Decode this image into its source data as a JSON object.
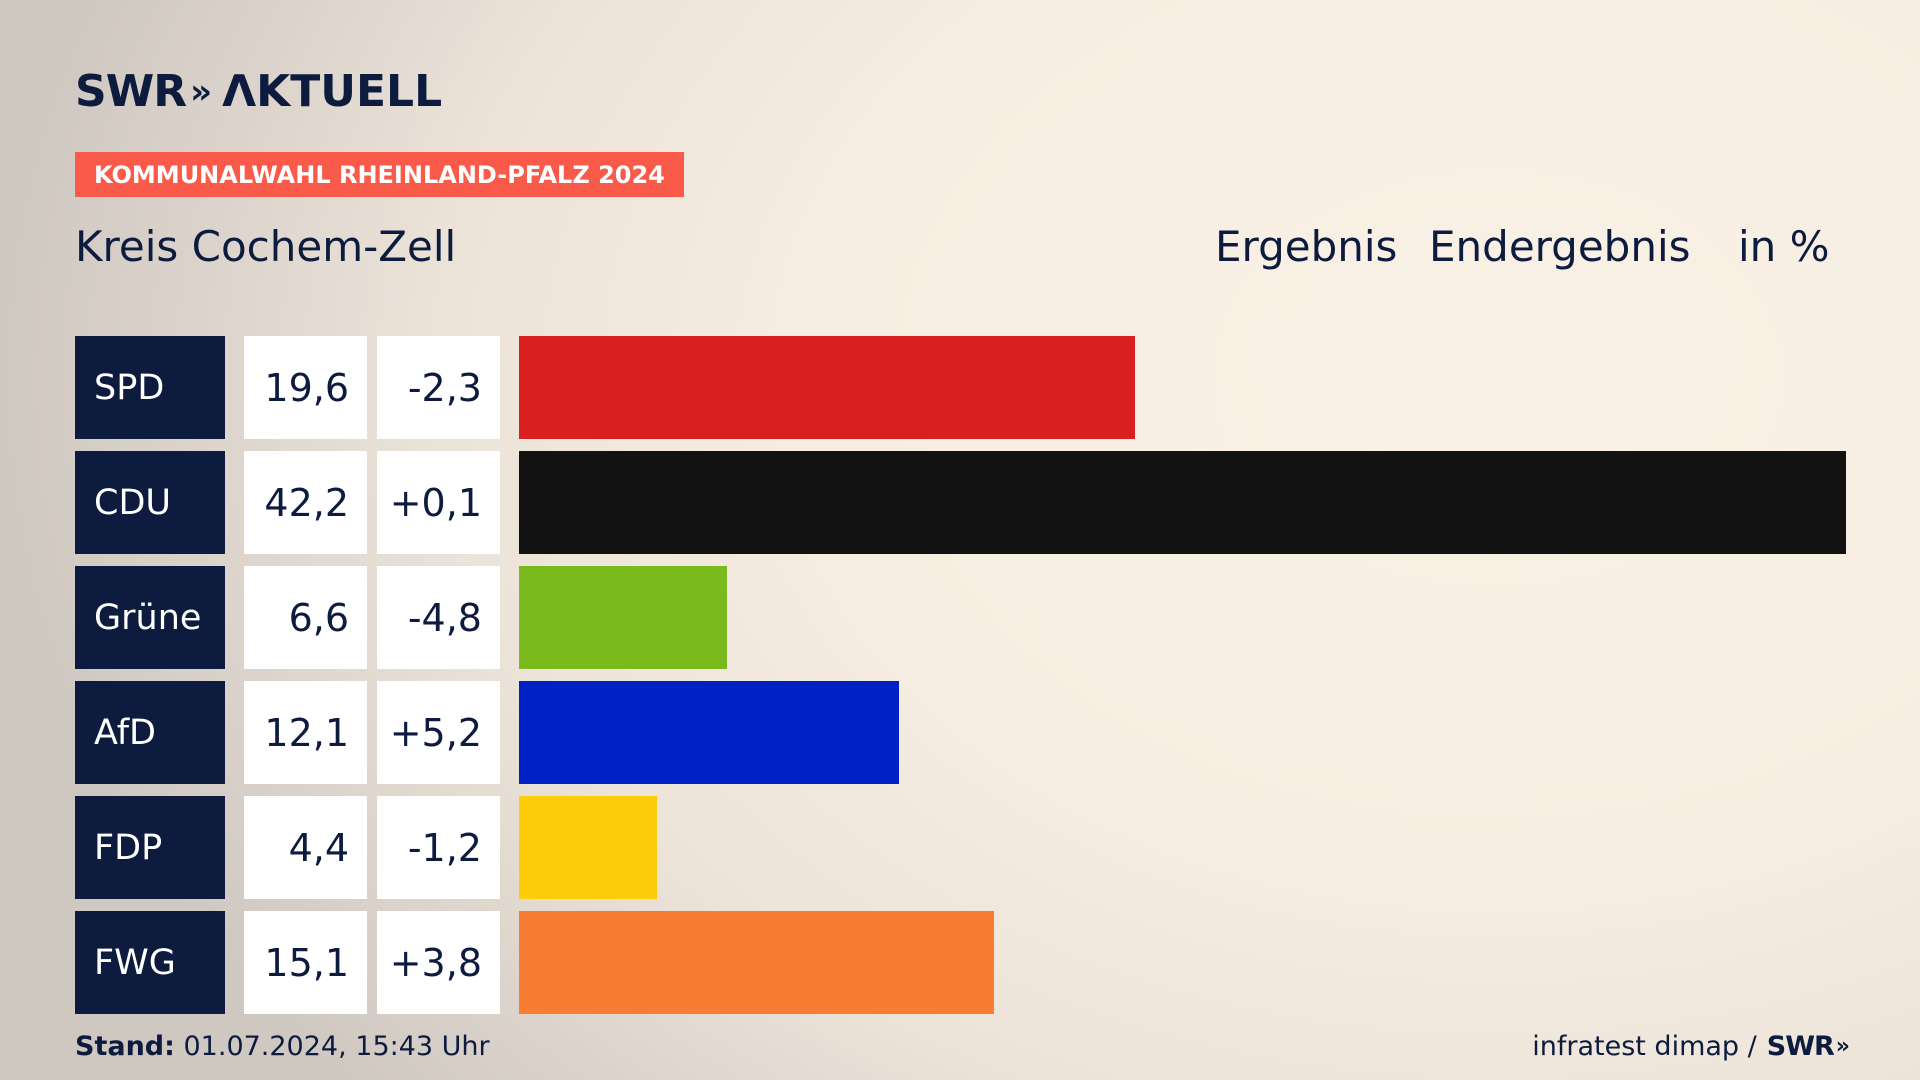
{
  "logo": {
    "swr": "SWR",
    "chevrons": "»",
    "aktuell": "ΛKTUELL"
  },
  "banner": "KOMMUNALWAHL RHEINLAND-PFALZ 2024",
  "region": "Kreis Cochem-Zell",
  "header": {
    "ergebnis": "Ergebnis",
    "status": "Endergebnis",
    "unit": "in %"
  },
  "footer": {
    "stand_label": "Stand:",
    "stand_value": " 01.07.2024, 15:43 Uhr",
    "source": "infratest dimap /",
    "source_logo": "SWR",
    "source_chevrons": "»"
  },
  "chart_data": {
    "type": "bar",
    "orientation": "horizontal",
    "categories": [
      "SPD",
      "CDU",
      "Grüne",
      "AfD",
      "FDP",
      "FWG"
    ],
    "values": [
      19.6,
      42.2,
      6.6,
      12.1,
      4.4,
      15.1
    ],
    "value_labels": [
      "19,6",
      "42,2",
      "6,6",
      "12,1",
      "4,4",
      "15,1"
    ],
    "diffs": [
      -2.3,
      0.1,
      -4.8,
      5.2,
      -1.2,
      3.8
    ],
    "diff_labels": [
      "-2,3",
      "+0,1",
      "-4,8",
      "+5,2",
      "-1,2",
      "+3,8"
    ],
    "colors": [
      "#d91f1f",
      "#121212",
      "#7aba1c",
      "#0021c6",
      "#fecc0b",
      "#f97c35"
    ],
    "party_label_bg": "#0d1b3e",
    "xlim": [
      0,
      42.2
    ],
    "grid": false,
    "legend": "none"
  }
}
